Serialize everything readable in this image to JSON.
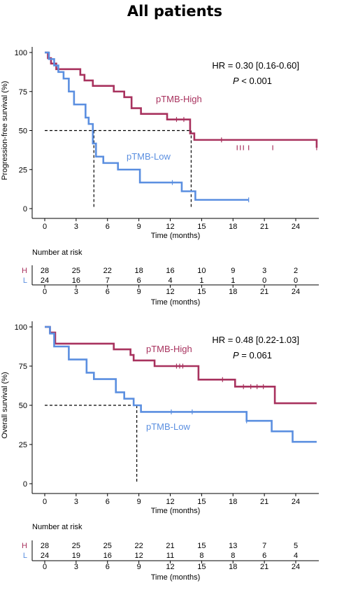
{
  "page_title": "All patients",
  "colors": {
    "high": "#A8325E",
    "low": "#5B8FE0"
  },
  "chart_data": [
    {
      "type": "line",
      "subtype": "kaplan-meier",
      "title": "",
      "xlabel": "Time (months)",
      "ylabel": "Progression-free survival (%)",
      "xlim": [
        -1,
        26
      ],
      "ylim": [
        0,
        100
      ],
      "x_ticks": [
        0,
        3,
        6,
        9,
        12,
        15,
        18,
        21,
        24
      ],
      "y_ticks": [
        0,
        25,
        50,
        75,
        100
      ],
      "hr_text": "HR = 0.30 [0.16-0.60]",
      "p_label": "P",
      "p_value": " < 0.001",
      "median_line": {
        "y": 50,
        "x": [
          4.7,
          14.0
        ]
      },
      "series": [
        {
          "name": "pTMB-High",
          "key": "high",
          "x": [
            0,
            0.3,
            0.6,
            1.1,
            3.4,
            3.8,
            4.6,
            6.6,
            7.6,
            8.3,
            9.2,
            11.7,
            13.9,
            14.3,
            26
          ],
          "y": [
            100,
            96.4,
            92.9,
            89.3,
            85.7,
            82.1,
            78.6,
            75.0,
            71.4,
            64.3,
            60.7,
            57.1,
            48.2,
            44.0,
            39.0
          ],
          "censor": [
            [
              12.6,
              57.1
            ],
            [
              13.3,
              57.1
            ],
            [
              16.9,
              44.0
            ],
            [
              18.4,
              39.0
            ],
            [
              18.7,
              39.0
            ],
            [
              19.0,
              39.0
            ],
            [
              19.5,
              39.0
            ],
            [
              21.8,
              39.0
            ],
            [
              26,
              39.0
            ]
          ]
        },
        {
          "name": "pTMB-Low",
          "key": "low",
          "x": [
            0,
            0.4,
            0.9,
            1.3,
            1.8,
            2.3,
            2.8,
            3.9,
            4.2,
            4.6,
            4.9,
            5.6,
            7.0,
            9.1,
            13.1,
            14.4,
            19.5
          ],
          "y": [
            100,
            95.8,
            91.7,
            87.5,
            83.3,
            75.0,
            66.7,
            58.3,
            54.2,
            41.7,
            33.3,
            29.2,
            25.0,
            16.7,
            11.1,
            5.6,
            5.6
          ],
          "censor": [
            [
              12.2,
              16.7
            ],
            [
              19.5,
              5.6
            ]
          ]
        }
      ],
      "risk_table": {
        "title": "Number at risk",
        "groups": [
          {
            "label": "H",
            "key": "high",
            "values": [
              "28",
              "25",
              "22",
              "18",
              "16",
              "10",
              "9",
              "3",
              "2"
            ]
          },
          {
            "label": "L",
            "key": "low",
            "values": [
              "24",
              "16",
              "7",
              "6",
              "4",
              "1",
              "1",
              "0",
              "0"
            ]
          }
        ],
        "xlabel": "Time (months)"
      }
    },
    {
      "type": "line",
      "subtype": "kaplan-meier",
      "title": "",
      "xlabel": "Time (months)",
      "ylabel": "Overall survival (%)",
      "xlim": [
        -1,
        26
      ],
      "ylim": [
        0,
        100
      ],
      "x_ticks": [
        0,
        3,
        6,
        9,
        12,
        15,
        18,
        21,
        24
      ],
      "y_ticks": [
        0,
        25,
        50,
        75,
        100
      ],
      "hr_text": "HR = 0.48 [0.22-1.03]",
      "p_label": "P",
      "p_value": " = 0.061",
      "median_line": {
        "y": 50,
        "x": [
          8.8
        ]
      },
      "series": [
        {
          "name": "pTMB-High",
          "key": "high",
          "x": [
            0,
            0.5,
            1.0,
            6.6,
            8.2,
            8.5,
            10.5,
            14.7,
            18.2,
            22.0,
            26
          ],
          "y": [
            100,
            96.4,
            89.3,
            85.7,
            82.1,
            78.6,
            75.0,
            66.4,
            61.9,
            51.3,
            51.3
          ],
          "censor": [
            [
              12.6,
              75.0
            ],
            [
              12.9,
              75.0
            ],
            [
              13.2,
              75.0
            ],
            [
              17.0,
              66.4
            ],
            [
              19.0,
              61.9
            ],
            [
              19.7,
              61.9
            ],
            [
              20.3,
              61.9
            ],
            [
              20.9,
              61.9
            ]
          ]
        },
        {
          "name": "pTMB-Low",
          "key": "low",
          "x": [
            0,
            0.5,
            0.9,
            2.3,
            4.0,
            4.7,
            6.8,
            7.6,
            8.5,
            9.2,
            19.3,
            21.7,
            23.7,
            26
          ],
          "y": [
            100,
            95.8,
            87.5,
            79.2,
            70.8,
            66.7,
            58.3,
            54.2,
            50.0,
            45.8,
            40.1,
            33.4,
            26.7,
            26.7
          ],
          "censor": [
            [
              12.1,
              45.8
            ],
            [
              14.1,
              45.8
            ],
            [
              19.3,
              40.1
            ]
          ]
        }
      ],
      "risk_table": {
        "title": "Number at risk",
        "groups": [
          {
            "label": "H",
            "key": "high",
            "values": [
              "28",
              "25",
              "25",
              "22",
              "21",
              "15",
              "13",
              "7",
              "5"
            ]
          },
          {
            "label": "L",
            "key": "low",
            "values": [
              "24",
              "19",
              "16",
              "12",
              "11",
              "8",
              "8",
              "6",
              "4"
            ]
          }
        ],
        "xlabel": "Time (months)"
      }
    }
  ]
}
